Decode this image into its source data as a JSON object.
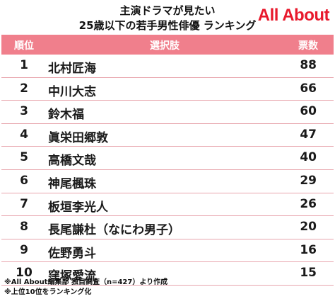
{
  "header": {
    "title_line1": "主演ドラマが見たい",
    "title_line2": "25歳以下の若手男性俳優 ランキング",
    "logo_text": "All About",
    "logo_color": "#e8192c"
  },
  "table": {
    "header_color": "#f07f8c",
    "columns": {
      "rank": "順位",
      "name": "選択肢",
      "votes": "票数"
    },
    "rows": [
      {
        "rank": "1",
        "name": "北村匠海",
        "votes": "88"
      },
      {
        "rank": "2",
        "name": "中川大志",
        "votes": "66"
      },
      {
        "rank": "3",
        "name": "鈴木福",
        "votes": "60"
      },
      {
        "rank": "4",
        "name": "眞栄田郷敦",
        "votes": "47"
      },
      {
        "rank": "5",
        "name": "高橋文哉",
        "votes": "40"
      },
      {
        "rank": "6",
        "name": "神尾楓珠",
        "votes": "29"
      },
      {
        "rank": "7",
        "name": "板垣李光人",
        "votes": "26"
      },
      {
        "rank": "8",
        "name": "長尾謙杜（なにわ男子）",
        "votes": "20"
      },
      {
        "rank": "9",
        "name": "佐野勇斗",
        "votes": "16"
      },
      {
        "rank": "10",
        "name": "窪塚愛流",
        "votes": "15"
      }
    ]
  },
  "notes": {
    "line1": "※All About編集部 独自調査（n=427）より作成",
    "line2": "※上位10位をランキング化"
  }
}
